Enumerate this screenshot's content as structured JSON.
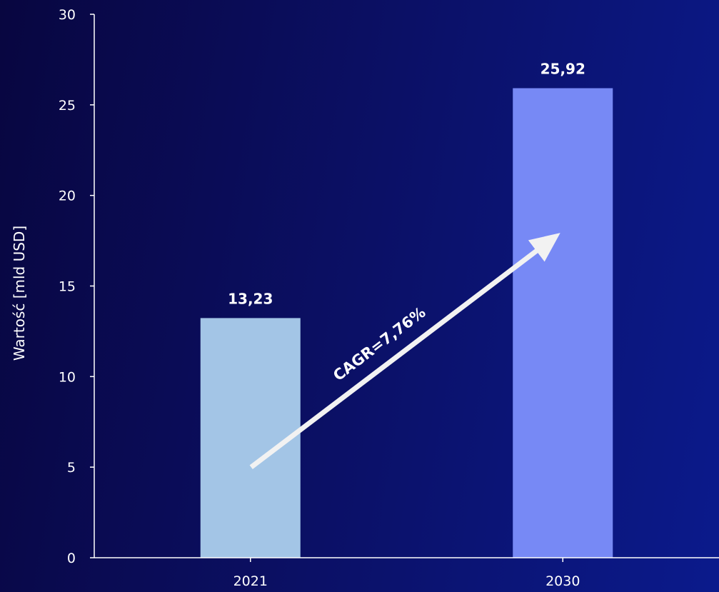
{
  "chart_data": {
    "type": "bar",
    "categories": [
      "2021",
      "2030"
    ],
    "values": [
      13.23,
      25.92
    ],
    "value_labels": [
      "13,23",
      "25,92"
    ],
    "ylabel": "Wartość [mld USD]",
    "xlabel": "",
    "ylim": [
      0,
      30
    ],
    "yticks": [
      0,
      5,
      10,
      15,
      20,
      25,
      30
    ],
    "grid": false,
    "legend": "none",
    "bar_colors": [
      "#a3c5e6",
      "#7789f5"
    ],
    "annotation": {
      "text": "CAGR=7,76%",
      "arrow_from": {
        "category": "2021",
        "value": 5
      },
      "arrow_to": {
        "category": "2030",
        "value": 17.8
      },
      "color": "#f2f2f2"
    },
    "axis_color": "#ffffff"
  }
}
